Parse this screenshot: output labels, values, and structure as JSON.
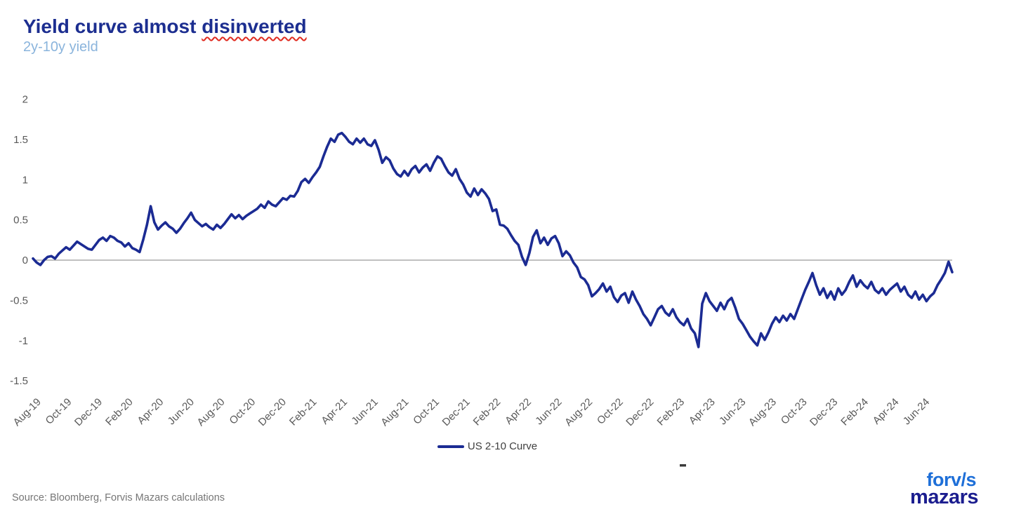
{
  "header": {
    "title": "Yield curve almost disinverted",
    "title_prefix": "Yield curve almost ",
    "title_flagged_word": "disinverted",
    "subtitle": "2y-10y yield"
  },
  "chart_data": {
    "type": "line",
    "title": "Yield curve almost disinverted",
    "subtitle": "2y-10y yield",
    "xlabel": "",
    "ylabel": "",
    "ylim": [
      -1.5,
      2
    ],
    "y_ticks": [
      2,
      1.5,
      1,
      0.5,
      0,
      -0.5,
      -1,
      -1.5
    ],
    "x_tick_labels": [
      "Aug-19",
      "Oct-19",
      "Dec-19",
      "Feb-20",
      "Apr-20",
      "Jun-20",
      "Aug-20",
      "Oct-20",
      "Dec-20",
      "Feb-21",
      "Apr-21",
      "Jun-21",
      "Aug-21",
      "Oct-21",
      "Dec-21",
      "Feb-22",
      "Apr-22",
      "Jun-22",
      "Aug-22",
      "Oct-22",
      "Dec-22",
      "Feb-23",
      "Apr-23",
      "Jun-23",
      "Aug-23",
      "Oct-23",
      "Dec-23",
      "Feb-24",
      "Apr-24",
      "Jun-24"
    ],
    "x_span_months": 60,
    "x_start": "Aug-19",
    "x_end": "Jul-24",
    "grid": "zero-baseline-only",
    "baseline": 0,
    "legend_position": "bottom-center",
    "series": [
      {
        "name": "US 2-10 Curve",
        "color": "#1B2B93",
        "frequency": "weekly",
        "values": [
          0.02,
          -0.03,
          -0.06,
          0.0,
          0.04,
          0.05,
          0.02,
          0.08,
          0.12,
          0.16,
          0.13,
          0.18,
          0.23,
          0.2,
          0.17,
          0.14,
          0.13,
          0.19,
          0.25,
          0.28,
          0.24,
          0.3,
          0.28,
          0.24,
          0.22,
          0.17,
          0.21,
          0.15,
          0.13,
          0.1,
          0.26,
          0.44,
          0.67,
          0.47,
          0.38,
          0.43,
          0.47,
          0.42,
          0.39,
          0.34,
          0.39,
          0.46,
          0.52,
          0.59,
          0.5,
          0.46,
          0.42,
          0.45,
          0.41,
          0.38,
          0.44,
          0.4,
          0.45,
          0.51,
          0.57,
          0.52,
          0.56,
          0.51,
          0.55,
          0.58,
          0.61,
          0.64,
          0.69,
          0.65,
          0.73,
          0.69,
          0.67,
          0.72,
          0.77,
          0.75,
          0.8,
          0.79,
          0.86,
          0.97,
          1.01,
          0.96,
          1.03,
          1.09,
          1.16,
          1.29,
          1.41,
          1.51,
          1.47,
          1.56,
          1.58,
          1.53,
          1.47,
          1.44,
          1.51,
          1.46,
          1.51,
          1.44,
          1.42,
          1.49,
          1.37,
          1.21,
          1.28,
          1.24,
          1.14,
          1.07,
          1.04,
          1.11,
          1.05,
          1.13,
          1.17,
          1.09,
          1.15,
          1.19,
          1.11,
          1.21,
          1.29,
          1.26,
          1.17,
          1.09,
          1.05,
          1.13,
          1.01,
          0.94,
          0.84,
          0.79,
          0.89,
          0.81,
          0.88,
          0.83,
          0.76,
          0.61,
          0.63,
          0.44,
          0.43,
          0.39,
          0.31,
          0.24,
          0.19,
          0.04,
          -0.06,
          0.09,
          0.29,
          0.37,
          0.21,
          0.28,
          0.19,
          0.27,
          0.3,
          0.21,
          0.05,
          0.11,
          0.06,
          -0.03,
          -0.09,
          -0.21,
          -0.24,
          -0.31,
          -0.45,
          -0.41,
          -0.36,
          -0.29,
          -0.39,
          -0.33,
          -0.46,
          -0.52,
          -0.44,
          -0.41,
          -0.53,
          -0.39,
          -0.49,
          -0.57,
          -0.67,
          -0.73,
          -0.81,
          -0.71,
          -0.61,
          -0.57,
          -0.65,
          -0.69,
          -0.61,
          -0.71,
          -0.77,
          -0.81,
          -0.73,
          -0.85,
          -0.91,
          -1.08,
          -0.54,
          -0.41,
          -0.51,
          -0.57,
          -0.63,
          -0.53,
          -0.61,
          -0.51,
          -0.47,
          -0.59,
          -0.73,
          -0.79,
          -0.87,
          -0.95,
          -1.01,
          -1.06,
          -0.91,
          -0.99,
          -0.9,
          -0.79,
          -0.71,
          -0.77,
          -0.69,
          -0.75,
          -0.67,
          -0.73,
          -0.61,
          -0.49,
          -0.37,
          -0.27,
          -0.16,
          -0.31,
          -0.43,
          -0.35,
          -0.47,
          -0.39,
          -0.49,
          -0.35,
          -0.43,
          -0.37,
          -0.27,
          -0.19,
          -0.33,
          -0.25,
          -0.31,
          -0.35,
          -0.27,
          -0.37,
          -0.41,
          -0.35,
          -0.43,
          -0.37,
          -0.33,
          -0.29,
          -0.39,
          -0.33,
          -0.43,
          -0.47,
          -0.39,
          -0.49,
          -0.43,
          -0.51,
          -0.45,
          -0.41,
          -0.31,
          -0.24,
          -0.16,
          -0.02,
          -0.15
        ]
      }
    ]
  },
  "legend": {
    "label": "US 2-10 Curve"
  },
  "footer": {
    "source": "Source: Bloomberg, Forvis Mazars calculations",
    "stray_mark": "-"
  },
  "logo": {
    "line1": "forv/s",
    "line2": "mazars"
  },
  "colors": {
    "title": "#1C2E90",
    "subtitle": "#8AB4DC",
    "line": "#1B2B93",
    "axis_text": "#595959",
    "legend_text": "#404040",
    "source_text": "#767676",
    "zero_line": "#808080",
    "spellcheck_squiggle": "#E02B20"
  }
}
